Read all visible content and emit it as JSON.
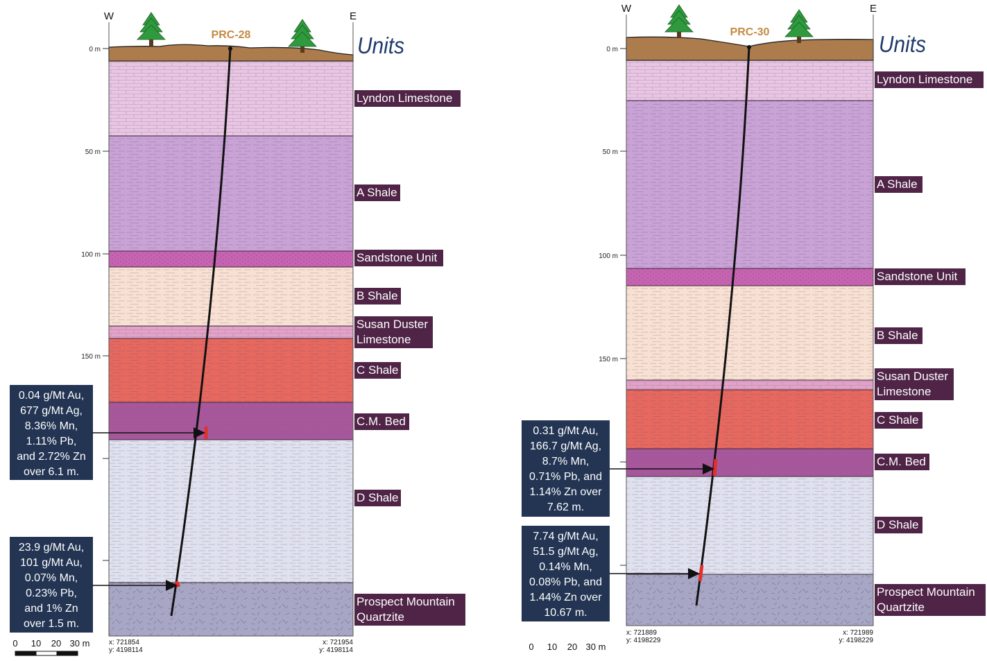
{
  "units_heading": "Units",
  "colors": {
    "lyndon_limestone": "#e8c6e4",
    "a_shale": "#c9a2d6",
    "sandstone_unit": "#c664b2",
    "b_shale": "#f8e1d2",
    "susan_duster_limestone": "#e3a3c8",
    "c_shale": "#e6685f",
    "cm_bed": "#a8569c",
    "d_shale": "#dfe1ee",
    "prospect_mountain_quartzite": "#a7a6c4",
    "overburden": "#ad7c4c",
    "label_box": "#4f2447",
    "assay_box": "#233553",
    "tree": "#2f9a3d",
    "well_name": "#c48a42",
    "intercept": "#e2302b"
  },
  "sections": [
    {
      "well": "PRC-28",
      "west_label": "W",
      "east_label": "E",
      "depth_ticks": [
        "0 m",
        "50 m",
        "100 m",
        "150 m"
      ],
      "units": [
        {
          "name": "Lyndon Limestone",
          "lines": [
            "Lyndon Limestone"
          ]
        },
        {
          "name": "A Shale",
          "lines": [
            "A Shale"
          ]
        },
        {
          "name": "Sandstone Unit",
          "lines": [
            "Sandstone Unit"
          ]
        },
        {
          "name": "B Shale",
          "lines": [
            "B Shale"
          ]
        },
        {
          "name": "Susan Duster Limestone",
          "lines": [
            "Susan Duster",
            "Limestone"
          ]
        },
        {
          "name": "C Shale",
          "lines": [
            "C Shale"
          ]
        },
        {
          "name": "C.M. Bed",
          "lines": [
            "C.M. Bed"
          ]
        },
        {
          "name": "D Shale",
          "lines": [
            "D Shale"
          ]
        },
        {
          "name": "Prospect Mountain Quartzite",
          "lines": [
            "Prospect Mountain",
            "Quartzite"
          ]
        }
      ],
      "assays": [
        {
          "lines": [
            "0.04 g/Mt Au,",
            "677 g/Mt Ag,",
            "8.36% Mn,",
            "1.11% Pb,",
            "and 2.72% Zn",
            "over 6.1 m."
          ]
        },
        {
          "lines": [
            "23.9 g/Mt Au,",
            "101 g/Mt Au,",
            "0.07% Mn,",
            "0.23% Pb,",
            "and 1% Zn",
            "over 1.5 m."
          ]
        }
      ],
      "coords_left": [
        "x: 721854",
        "y: 4198114"
      ],
      "coords_right": [
        "x: 721954",
        "y: 4198114"
      ],
      "scale_labels": [
        "0",
        "10",
        "20",
        "30 m"
      ]
    },
    {
      "well": "PRC-30",
      "west_label": "W",
      "east_label": "E",
      "depth_ticks": [
        "0 m",
        "50 m",
        "100 m",
        "150 m"
      ],
      "units": [
        {
          "name": "Lyndon Limestone",
          "lines": [
            "Lyndon Limestone"
          ]
        },
        {
          "name": "A Shale",
          "lines": [
            "A Shale"
          ]
        },
        {
          "name": "Sandstone Unit",
          "lines": [
            "Sandstone Unit"
          ]
        },
        {
          "name": "B Shale",
          "lines": [
            "B Shale"
          ]
        },
        {
          "name": "Susan Duster Limestone",
          "lines": [
            "Susan Duster",
            "Limestone"
          ]
        },
        {
          "name": "C Shale",
          "lines": [
            "C Shale"
          ]
        },
        {
          "name": "C.M. Bed",
          "lines": [
            "C.M. Bed"
          ]
        },
        {
          "name": "D Shale",
          "lines": [
            "D Shale"
          ]
        },
        {
          "name": "Prospect Mountain Quartzite",
          "lines": [
            "Prospect Mountain",
            "Quartzite"
          ]
        }
      ],
      "assays": [
        {
          "lines": [
            "0.31 g/Mt Au,",
            "166.7 g/Mt Ag,",
            "8.7% Mn,",
            "0.71% Pb, and",
            "1.14% Zn over",
            "7.62 m."
          ]
        },
        {
          "lines": [
            "7.74 g/Mt Au,",
            "51.5 g/Mt Ag,",
            "0.14% Mn,",
            "0.08% Pb, and",
            "1.44% Zn over",
            "10.67 m."
          ]
        }
      ],
      "coords_left": [
        "x: 721889",
        "y: 4198229"
      ],
      "coords_right": [
        "x: 721989",
        "y: 4198229"
      ],
      "scale_labels": [
        "0",
        "10",
        "20",
        "30 m"
      ]
    }
  ]
}
